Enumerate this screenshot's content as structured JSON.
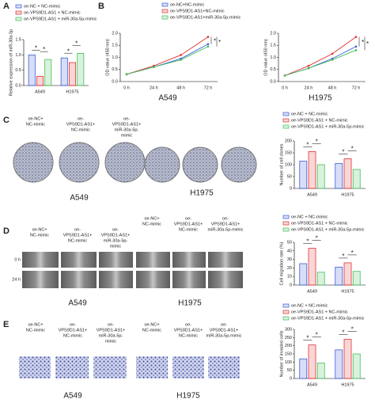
{
  "panel_labels": [
    "A",
    "B",
    "C",
    "D",
    "E"
  ],
  "chart_data": [
    {
      "type": "bar",
      "y_label": "Relative expression of miR-30a-5p",
      "categories": [
        "A549",
        "H1975"
      ],
      "ylim": [
        0,
        1.5
      ],
      "yticks": [
        {
          "value": 0,
          "label": "0.0"
        },
        {
          "value": 0.5,
          "label": "0.5"
        },
        {
          "value": 1,
          "label": "1.0"
        },
        {
          "value": 1.5,
          "label": "1.5"
        }
      ],
      "annotation": "*",
      "series": [
        {
          "name": "oe-NC + NC-mimic",
          "color": "#3b5bdb",
          "values": [
            1.0,
            0.9
          ]
        },
        {
          "name": "oe-VPS9D1-AS1 + NC-mimic",
          "color": "#e03131",
          "values": [
            0.3,
            0.75
          ]
        },
        {
          "name": "oe-VPS9D1-AS1 + miR-30a-5p-mimic",
          "color": "#40c057",
          "values": [
            0.85,
            1.05
          ]
        }
      ]
    },
    {
      "type": "line",
      "y_label": "OD value (450 nm)",
      "caption": "A549",
      "categories": [
        "0 h",
        "24 h",
        "48 h",
        "72 h"
      ],
      "ylim": [
        0,
        2
      ],
      "yticks": [
        {
          "value": 0,
          "label": "0.0"
        },
        {
          "value": 0.5,
          "label": "0.5"
        },
        {
          "value": 1,
          "label": "1.0"
        },
        {
          "value": 1.5,
          "label": "1.5"
        },
        {
          "value": 2,
          "label": "2.0"
        }
      ],
      "annotation": "*",
      "series": [
        {
          "name": "oe-NC+NC-mimic",
          "color": "#3b5bdb",
          "values": [
            0.3,
            0.6,
            0.95,
            1.55
          ]
        },
        {
          "name": "oe-VPS9D1-AS1+NC-mimic",
          "color": "#e03131",
          "values": [
            0.3,
            0.65,
            1.1,
            1.85
          ]
        },
        {
          "name": "oe-VPS9D1-AS1+miR-30a-5p-mimic",
          "color": "#40c057",
          "values": [
            0.3,
            0.6,
            0.9,
            1.45
          ]
        }
      ]
    },
    {
      "type": "line",
      "y_label": "OD value (450 nm)",
      "caption": "H1975",
      "categories": [
        "0 h",
        "24 h",
        "48 h",
        "72 h"
      ],
      "ylim": [
        0,
        2
      ],
      "yticks": [
        {
          "value": 0,
          "label": "0.0"
        },
        {
          "value": 0.5,
          "label": "0.5"
        },
        {
          "value": 1,
          "label": "1.0"
        },
        {
          "value": 1.5,
          "label": "1.5"
        },
        {
          "value": 2,
          "label": "2.0"
        }
      ],
      "annotation": "*",
      "series": [
        {
          "color": "#3b5bdb",
          "values": [
            0.25,
            0.55,
            0.95,
            1.45
          ]
        },
        {
          "color": "#e03131",
          "values": [
            0.25,
            0.65,
            1.15,
            1.85
          ]
        },
        {
          "color": "#40c057",
          "values": [
            0.25,
            0.55,
            0.9,
            1.3
          ]
        }
      ]
    },
    {
      "type": "bar",
      "y_label": "Number of cell clones",
      "categories": [
        "A549",
        "H1975"
      ],
      "ylim": [
        0,
        200
      ],
      "yticks": [
        0,
        50,
        100,
        150,
        200
      ],
      "annotation": "*",
      "series": [
        {
          "name": "oe-NC + NC-mimic",
          "color": "#3b5bdb",
          "values": [
            115,
            105
          ]
        },
        {
          "name": "oe-VPS9D1-AS1 + NC-mimic",
          "color": "#e03131",
          "values": [
            155,
            125
          ]
        },
        {
          "name": "oe-VPS9D1-AS1 + miR-30a-5p-mimic",
          "color": "#40c057",
          "values": [
            100,
            80
          ]
        }
      ]
    },
    {
      "type": "bar",
      "y_label": "Cell migration rate (%)",
      "categories": [
        "A549",
        "H1975"
      ],
      "ylim": [
        0,
        50
      ],
      "yticks": [
        0,
        10,
        20,
        30,
        40,
        50
      ],
      "annotation": "*",
      "series": [
        {
          "name": "oe-NC + NC-mimic",
          "color": "#3b5bdb",
          "values": [
            25,
            21
          ]
        },
        {
          "name": "oe-VPS9D1-AS1 + NC-mimic",
          "color": "#e03131",
          "values": [
            43,
            26
          ]
        },
        {
          "name": "oe-VPS9D1-AS1 + miR-30a-5p-mimic",
          "color": "#40c057",
          "values": [
            15,
            16
          ]
        }
      ]
    },
    {
      "type": "bar",
      "y_label": "Number of invaded cells",
      "categories": [
        "A549",
        "H1975"
      ],
      "ylim": [
        0,
        300
      ],
      "yticks": [
        0,
        50,
        100,
        150,
        200,
        250,
        300
      ],
      "annotation": "*",
      "series": [
        {
          "name": "oe-NC + NC-mimic",
          "color": "#3b5bdb",
          "values": [
            120,
            175
          ]
        },
        {
          "name": "oe-VPS9D1-AS1 + NC-mimic",
          "color": "#e03131",
          "values": [
            205,
            240
          ]
        },
        {
          "name": "oe-VPS9D1-AS1 + miR-30a-5p-mimic",
          "color": "#40c057",
          "values": [
            95,
            150
          ]
        }
      ]
    }
  ],
  "panel_C": {
    "groups": [
      [
        "oe-NC+",
        "NC-mimic"
      ],
      [
        "oe-",
        "VPS9D1-AS1+",
        "NC-mimic"
      ],
      [
        "oe-",
        "VPS9D1-AS1+",
        "miR-30a-5p-",
        "mimic"
      ]
    ],
    "cell_lines": [
      "A549",
      "H1975"
    ]
  },
  "panel_D": {
    "groups_A549": [
      [
        "oe-NC+",
        "NC-mimic"
      ],
      [
        "oe-",
        "VPS9D1-AS1+",
        "NC-mimic"
      ],
      [
        "oe-",
        "VPS9D1-AS1+",
        "miR-30a-5p-",
        "mimic"
      ]
    ],
    "groups_H1975": [
      [
        "oe-NC+",
        "NC-mimic"
      ],
      [
        "oe-",
        "VPS9D1-AS1+",
        "NC-mimic"
      ],
      [
        "oe-",
        "VPS9D1-AS1+",
        "miR-30a-5p-mimic"
      ]
    ],
    "times": [
      "0 h",
      "24 h"
    ],
    "cell_lines": [
      "A549",
      "H1975"
    ]
  },
  "panel_E": {
    "groups_A549": [
      [
        "oe-NC+",
        "NC-mimic"
      ],
      [
        "oe-",
        "VPS9D1-AS1+",
        "NC-mimic"
      ],
      [
        "oe-",
        "VPS9D1-AS1+",
        "miR-30a-5p-",
        "mimic"
      ]
    ],
    "groups_H1975": [
      [
        "oe-NC+",
        "NC-mimic"
      ],
      [
        "oe-",
        "VPS9D1-AS1+",
        "NC-mimic"
      ],
      [
        "oe-",
        "VPS9D1-AS1+",
        "miR-30a-5p-mimic"
      ]
    ],
    "cell_lines": [
      "A549",
      "H1975"
    ]
  }
}
